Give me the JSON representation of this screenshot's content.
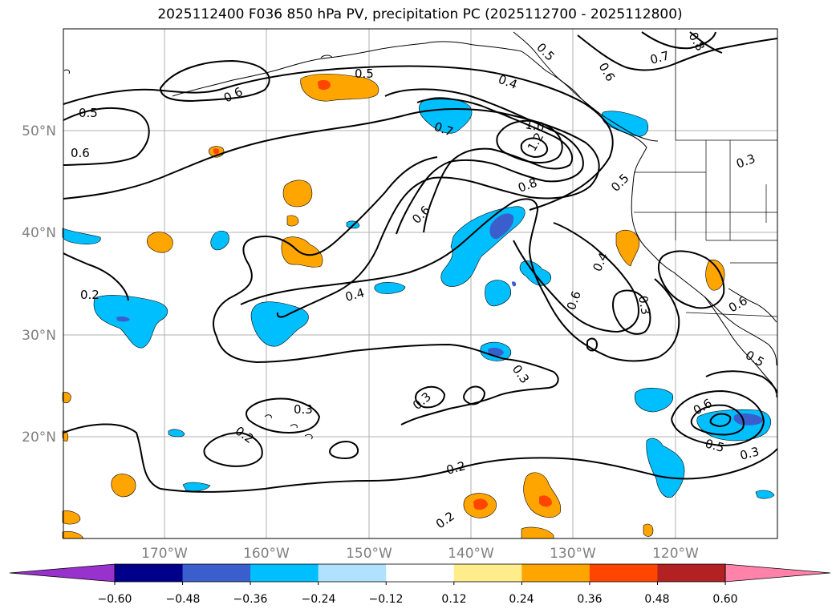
{
  "title": "2025112400 F036 850 hPa PV, precipitation PC (2025112700 - 2025112800)",
  "latitude_labels": [
    "50°N",
    "40°N",
    "30°N",
    "20°N"
  ],
  "longitude_labels": [
    "170°W",
    "160°W",
    "150°W",
    "140°W",
    "130°W",
    "120°W"
  ],
  "contour_labels": [
    "0.5",
    "0.6",
    "0.5",
    "0.6",
    "0.4",
    "0.7",
    "1.0",
    "1.2",
    "0.8",
    "0.6",
    "0.5",
    "0.7",
    "0.6",
    "0.8",
    "0.5",
    "0.3",
    "0.4",
    "0.6",
    "0.3",
    "0.2",
    "0.4",
    "0.3",
    "0.3",
    "0.3",
    "0.2",
    "0.2",
    "0.2",
    "0.6",
    "0.5",
    "0.3",
    "0.6",
    "0.5"
  ],
  "colorbar": {
    "ticks": [
      "−0.60",
      "−0.48",
      "−0.36",
      "−0.24",
      "−0.12",
      "0.12",
      "0.24",
      "0.36",
      "0.48",
      "0.60"
    ],
    "colors": [
      "#9932cc",
      "#00008b",
      "#3a5fcd",
      "#00bfff",
      "#b0e2ff",
      "#ffffff",
      "#ffec8b",
      "#ffa500",
      "#ff4500",
      "#b22222",
      "#ff82ab"
    ]
  },
  "colors": {
    "land_line": "#000000",
    "grid": "#b0b0b0",
    "axis_label": "#808080",
    "orange_fill": "#ffa500",
    "red_fill": "#ff4500",
    "lightblue_fill": "#00bfff",
    "blue_fill": "#3a5fcd"
  }
}
